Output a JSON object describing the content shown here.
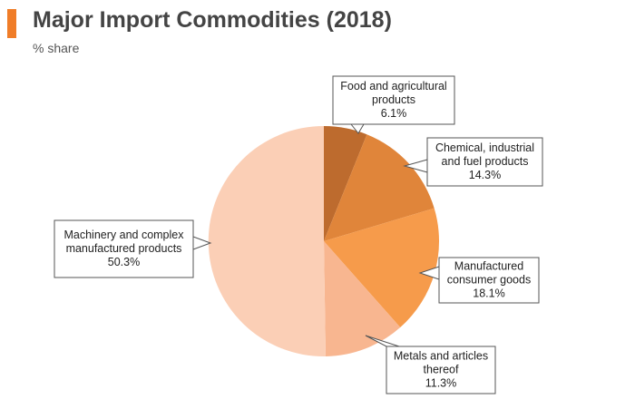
{
  "header": {
    "title": "Major Import Commodities (2018)",
    "subtitle": "% share",
    "accent_color": "#f07d28"
  },
  "chart_data": {
    "type": "pie",
    "title": "Major Import Commodities (2018)",
    "subtitle": "% share",
    "slices": [
      {
        "lines": [
          "Food and agricultural",
          "products"
        ],
        "value_label": "6.1%",
        "value": 6.1,
        "color": "#bd6b2e"
      },
      {
        "lines": [
          "Chemical, industrial",
          "and fuel products"
        ],
        "value_label": "14.3%",
        "value": 14.3,
        "color": "#e0853a"
      },
      {
        "lines": [
          "Manufactured",
          "consumer goods"
        ],
        "value_label": "18.1%",
        "value": 18.1,
        "color": "#f69b4b"
      },
      {
        "lines": [
          "Metals and articles",
          "thereof"
        ],
        "value_label": "11.3%",
        "value": 11.3,
        "color": "#f8b690"
      },
      {
        "lines": [
          "Machinery and complex",
          "manufactured products"
        ],
        "value_label": "50.3%",
        "value": 50.3,
        "color": "#fbcfb6"
      }
    ]
  }
}
